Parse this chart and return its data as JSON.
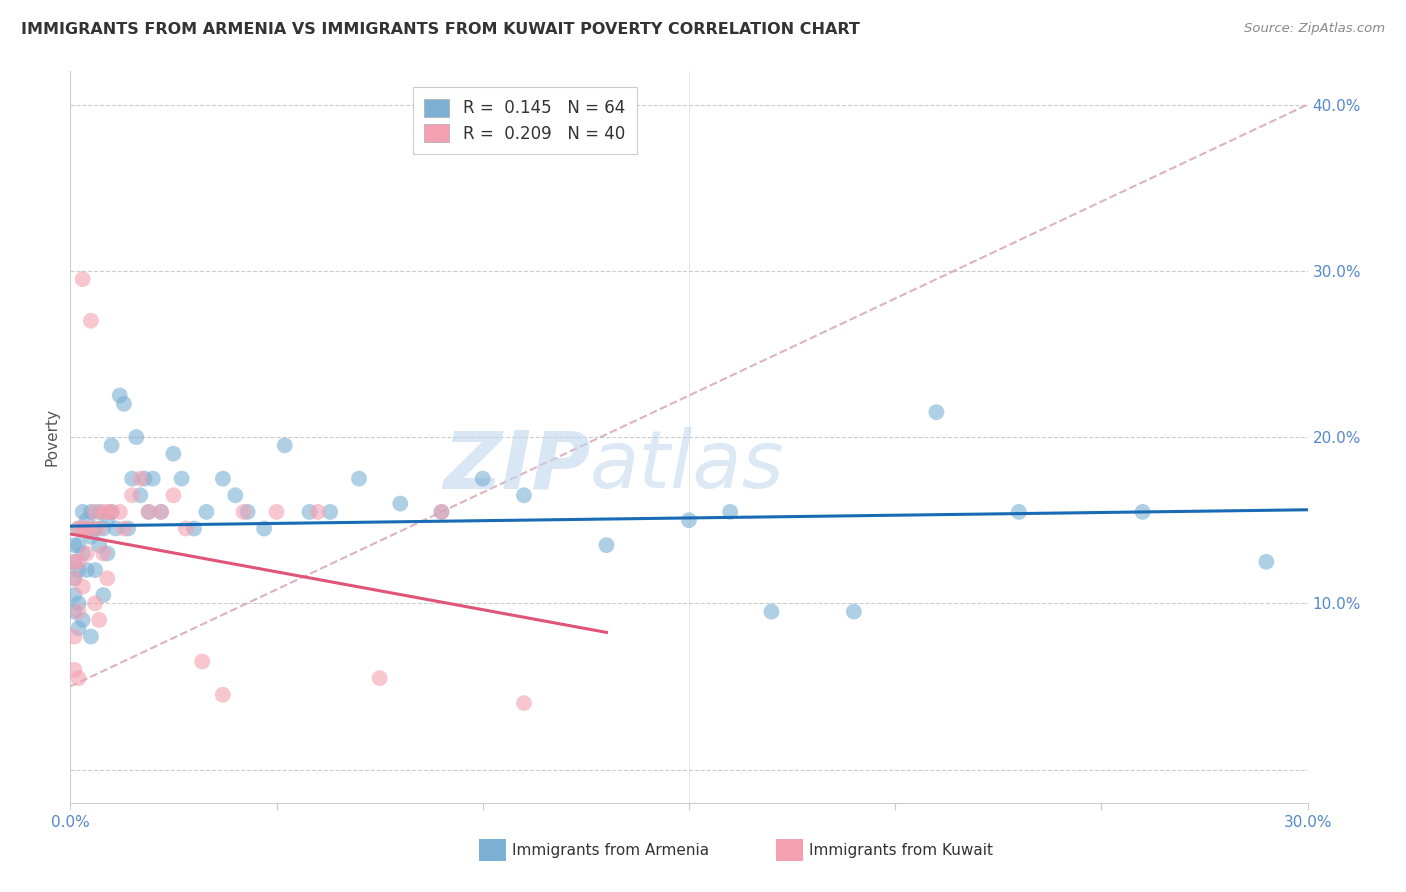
{
  "title": "IMMIGRANTS FROM ARMENIA VS IMMIGRANTS FROM KUWAIT POVERTY CORRELATION CHART",
  "source": "Source: ZipAtlas.com",
  "ylabel": "Poverty",
  "xlim": [
    0.0,
    0.3
  ],
  "ylim": [
    -0.02,
    0.42
  ],
  "color_armenia": "#7bafd4",
  "color_kuwait": "#f4a0b0",
  "trend_armenia_color": "#1a6bb5",
  "trend_kuwait_color": "#e05575",
  "trend_diagonal_color": "#d4a0b0",
  "background_color": "#ffffff",
  "watermark_zip": "ZIP",
  "watermark_atlas": "atlas",
  "legend_r_armenia": "0.145",
  "legend_n_armenia": "64",
  "legend_r_kuwait": "0.209",
  "legend_n_kuwait": "40",
  "armenia_x": [
    0.001,
    0.001,
    0.001,
    0.001,
    0.001,
    0.002,
    0.002,
    0.002,
    0.002,
    0.002,
    0.003,
    0.003,
    0.003,
    0.004,
    0.004,
    0.005,
    0.005,
    0.005,
    0.006,
    0.006,
    0.007,
    0.007,
    0.008,
    0.008,
    0.009,
    0.009,
    0.01,
    0.01,
    0.011,
    0.012,
    0.013,
    0.014,
    0.015,
    0.016,
    0.017,
    0.018,
    0.019,
    0.02,
    0.022,
    0.025,
    0.027,
    0.03,
    0.033,
    0.037,
    0.04,
    0.043,
    0.047,
    0.052,
    0.058,
    0.063,
    0.07,
    0.08,
    0.09,
    0.1,
    0.11,
    0.13,
    0.15,
    0.16,
    0.17,
    0.19,
    0.21,
    0.23,
    0.26,
    0.29
  ],
  "armenia_y": [
    0.135,
    0.125,
    0.115,
    0.105,
    0.095,
    0.145,
    0.135,
    0.12,
    0.1,
    0.085,
    0.155,
    0.13,
    0.09,
    0.15,
    0.12,
    0.155,
    0.14,
    0.08,
    0.145,
    0.12,
    0.155,
    0.135,
    0.145,
    0.105,
    0.15,
    0.13,
    0.155,
    0.195,
    0.145,
    0.225,
    0.22,
    0.145,
    0.175,
    0.2,
    0.165,
    0.175,
    0.155,
    0.175,
    0.155,
    0.19,
    0.175,
    0.145,
    0.155,
    0.175,
    0.165,
    0.155,
    0.145,
    0.195,
    0.155,
    0.155,
    0.175,
    0.16,
    0.155,
    0.175,
    0.165,
    0.135,
    0.15,
    0.155,
    0.095,
    0.095,
    0.215,
    0.155,
    0.155,
    0.125
  ],
  "kuwait_x": [
    0.001,
    0.001,
    0.001,
    0.001,
    0.002,
    0.002,
    0.002,
    0.002,
    0.003,
    0.003,
    0.003,
    0.004,
    0.004,
    0.005,
    0.005,
    0.006,
    0.006,
    0.007,
    0.007,
    0.008,
    0.008,
    0.009,
    0.009,
    0.01,
    0.012,
    0.013,
    0.015,
    0.017,
    0.019,
    0.022,
    0.025,
    0.028,
    0.032,
    0.037,
    0.042,
    0.05,
    0.06,
    0.075,
    0.09,
    0.11
  ],
  "kuwait_y": [
    0.125,
    0.115,
    0.08,
    0.06,
    0.145,
    0.125,
    0.095,
    0.055,
    0.145,
    0.11,
    0.295,
    0.145,
    0.13,
    0.27,
    0.145,
    0.155,
    0.1,
    0.145,
    0.09,
    0.155,
    0.13,
    0.155,
    0.115,
    0.155,
    0.155,
    0.145,
    0.165,
    0.175,
    0.155,
    0.155,
    0.165,
    0.145,
    0.065,
    0.045,
    0.155,
    0.155,
    0.155,
    0.055,
    0.155,
    0.04
  ]
}
